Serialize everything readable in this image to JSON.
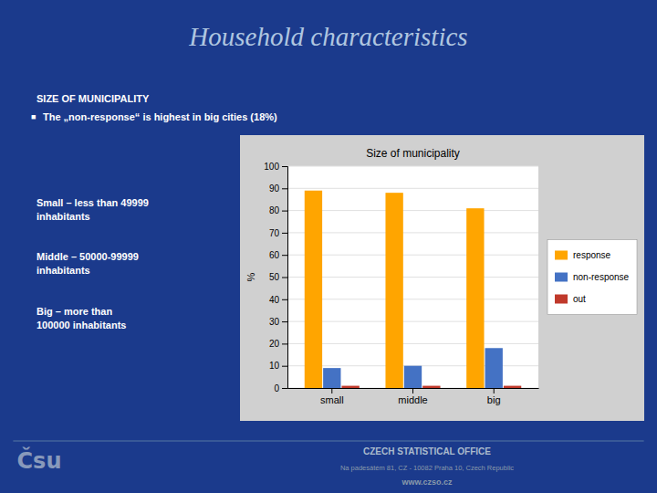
{
  "title": "Household characteristics",
  "subtitle": "SIZE OF MUNICIPALITY",
  "annotations": [
    "■",
    "The „non-response“ is highest in big cities (18%)",
    "Small – less than 49999\ninhabitants",
    "Middle – 50000-99999\ninhabitants",
    "Big – more than\n100000 inhabitants",
    "Čsu",
    "CZECH STATISTICAL OFFICE",
    "Na padesátém 81, CZ - 10082  Praha 10, Czech Republic",
    "www.czso.cz"
  ],
  "chart_data": {
    "type": "bar",
    "title": "Size of municipality",
    "categories": [
      "small",
      "middle",
      "big"
    ],
    "series": [
      {
        "name": "response",
        "color": "#FFA500",
        "values": [
          89,
          88,
          81
        ]
      },
      {
        "name": "non-response",
        "color": "#4472C4",
        "values": [
          9,
          10,
          18
        ]
      },
      {
        "name": "out",
        "color": "#C0392B",
        "values": [
          1,
          1,
          1
        ]
      }
    ],
    "ylabel": "%",
    "ylim": [
      0,
      100
    ],
    "yticks": [
      0,
      10,
      20,
      30,
      40,
      50,
      60,
      70,
      80,
      90,
      100
    ],
    "grid": true,
    "legend": "right"
  }
}
